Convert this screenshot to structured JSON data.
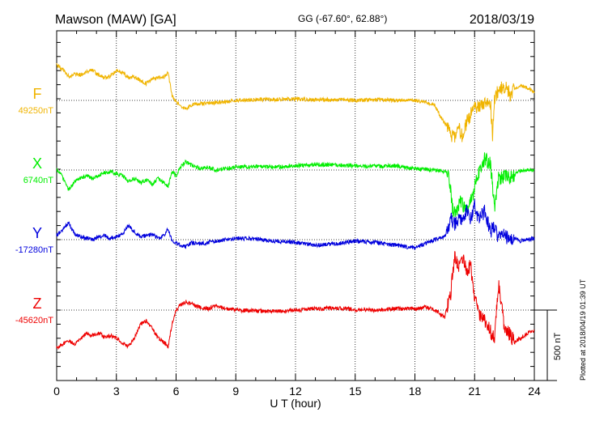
{
  "header": {
    "station": "Mawson (MAW)  [GA]",
    "coords": "GG (-67.60°,  62.88°)",
    "date": "2018/03/19"
  },
  "footer": {
    "plotted": "Plotted at 2018/04/19 01:39 UT",
    "scale_label": "500 nT"
  },
  "colors": {
    "F": "#f0b400",
    "X": "#00ee00",
    "Y": "#0000dd",
    "Z": "#ee0000"
  },
  "chart_data": {
    "type": "line",
    "title": "",
    "xlabel": "U T (hour)",
    "ylabel": "",
    "xlim": [
      0,
      24
    ],
    "x_ticks": [
      "0",
      "3",
      "6",
      "9",
      "12",
      "15",
      "18",
      "21",
      "24"
    ],
    "grid": true,
    "scale_bar_nT": 500,
    "series": [
      {
        "name": "F",
        "baseline_label": "49250nT",
        "color": "#f0b400",
        "baseline_nT": 49250,
        "x": [
          0,
          0.3,
          0.6,
          0.9,
          1.2,
          1.5,
          1.8,
          2.1,
          2.4,
          2.7,
          3.0,
          3.3,
          3.6,
          3.9,
          4.2,
          4.5,
          4.8,
          5.1,
          5.4,
          5.6,
          5.8,
          6.0,
          6.2,
          6.5,
          6.8,
          7.2,
          7.6,
          8.0,
          8.5,
          9,
          10,
          11,
          12,
          13,
          14,
          15,
          16,
          17,
          18,
          18.5,
          19,
          19.3,
          19.6,
          19.8,
          20.0,
          20.2,
          20.4,
          20.6,
          20.8,
          21.0,
          21.2,
          21.5,
          21.8,
          21.9,
          22.0,
          22.2,
          22.5,
          22.8,
          23.0,
          23.3,
          23.6,
          24
        ],
        "values": [
          250,
          220,
          170,
          190,
          180,
          200,
          215,
          180,
          160,
          175,
          210,
          200,
          160,
          170,
          140,
          120,
          150,
          160,
          170,
          200,
          30,
          -10,
          -40,
          -60,
          -30,
          -20,
          -20,
          -15,
          -10,
          0,
          5,
          5,
          10,
          5,
          5,
          0,
          5,
          0,
          0,
          -10,
          -30,
          -120,
          -180,
          -240,
          -260,
          -200,
          -260,
          -160,
          -100,
          -30,
          -60,
          -30,
          -20,
          -240,
          20,
          70,
          100,
          40,
          80,
          110,
          90,
          60
        ]
      },
      {
        "name": "X",
        "baseline_label": "6740nT",
        "color": "#00ee00",
        "baseline_nT": 6740,
        "x": [
          0,
          0.3,
          0.6,
          0.9,
          1.2,
          1.5,
          1.8,
          2.1,
          2.4,
          2.7,
          3.0,
          3.3,
          3.6,
          3.9,
          4.2,
          4.5,
          4.8,
          5.1,
          5.4,
          5.6,
          5.8,
          6.0,
          6.2,
          6.5,
          6.8,
          7.2,
          7.6,
          8.0,
          8.5,
          9,
          10,
          11,
          12,
          13,
          14,
          15,
          16,
          17,
          18,
          18.5,
          19,
          19.5,
          19.7,
          19.9,
          20.1,
          20.3,
          20.5,
          20.7,
          20.9,
          21.0,
          21.2,
          21.5,
          21.8,
          22.0,
          22.2,
          22.5,
          22.8,
          23.0,
          23.3,
          23.6,
          24
        ],
        "values": [
          0,
          -50,
          -140,
          -80,
          -60,
          -40,
          -60,
          -40,
          -20,
          -10,
          -30,
          -40,
          -80,
          -60,
          -90,
          -70,
          -100,
          -60,
          -90,
          -120,
          -10,
          -40,
          20,
          60,
          30,
          10,
          20,
          0,
          10,
          20,
          25,
          20,
          30,
          40,
          35,
          30,
          25,
          30,
          10,
          5,
          0,
          -10,
          -20,
          -280,
          -300,
          -220,
          -280,
          -240,
          -200,
          -100,
          -20,
          80,
          50,
          -280,
          -60,
          -40,
          -50,
          -30,
          -10,
          0,
          0
        ]
      },
      {
        "name": "Y",
        "baseline_label": "-17280nT",
        "color": "#0000dd",
        "baseline_nT": -17280,
        "x": [
          0,
          0.3,
          0.6,
          0.9,
          1.2,
          1.5,
          1.8,
          2.1,
          2.4,
          2.7,
          3.0,
          3.3,
          3.6,
          3.9,
          4.2,
          4.5,
          4.8,
          5.1,
          5.4,
          5.6,
          5.8,
          6.0,
          6.2,
          6.5,
          6.8,
          7.2,
          7.6,
          8.0,
          8.5,
          9,
          10,
          11,
          12,
          13,
          14,
          15,
          16,
          17,
          18,
          18.5,
          19,
          19.5,
          19.8,
          20.0,
          20.2,
          20.4,
          20.6,
          20.8,
          21.0,
          21.2,
          21.5,
          21.8,
          22.0,
          22.2,
          22.5,
          22.8,
          23.0,
          23.3,
          23.6,
          24
        ],
        "values": [
          30,
          70,
          120,
          40,
          20,
          10,
          0,
          20,
          30,
          10,
          20,
          40,
          100,
          60,
          20,
          30,
          40,
          10,
          30,
          80,
          -10,
          -20,
          -40,
          -50,
          -20,
          -30,
          -20,
          -10,
          0,
          10,
          5,
          -10,
          -20,
          -40,
          -30,
          -10,
          -20,
          -40,
          -60,
          -30,
          0,
          20,
          150,
          100,
          160,
          120,
          200,
          140,
          260,
          140,
          200,
          60,
          100,
          10,
          40,
          -20,
          20,
          -10,
          0,
          10
        ]
      },
      {
        "name": "Z",
        "baseline_label": "-45620nT",
        "color": "#ee0000",
        "baseline_nT": -45620,
        "x": [
          0,
          0.3,
          0.6,
          0.9,
          1.2,
          1.5,
          1.8,
          2.1,
          2.4,
          2.7,
          3.0,
          3.3,
          3.6,
          3.9,
          4.2,
          4.5,
          4.8,
          5.1,
          5.4,
          5.6,
          5.8,
          6.0,
          6.2,
          6.5,
          6.8,
          7.2,
          7.6,
          8.0,
          8.5,
          9,
          10,
          11,
          12,
          13,
          14,
          15,
          16,
          17,
          18,
          18.5,
          19,
          19.5,
          19.8,
          20.0,
          20.2,
          20.4,
          20.6,
          20.8,
          21.0,
          21.2,
          21.5,
          21.8,
          22.0,
          22.2,
          22.5,
          22.8,
          23.0,
          23.3,
          23.6,
          24
        ],
        "values": [
          -270,
          -240,
          -220,
          -240,
          -200,
          -170,
          -180,
          -160,
          -190,
          -180,
          -200,
          -230,
          -260,
          -200,
          -100,
          -80,
          -130,
          -200,
          -230,
          -260,
          -100,
          0,
          30,
          60,
          40,
          20,
          10,
          30,
          10,
          0,
          -5,
          -10,
          0,
          10,
          15,
          5,
          0,
          10,
          10,
          20,
          0,
          -50,
          120,
          400,
          300,
          380,
          260,
          320,
          80,
          -20,
          -80,
          -150,
          -200,
          180,
          -120,
          -180,
          -230,
          -200,
          -170,
          -140
        ]
      }
    ]
  }
}
